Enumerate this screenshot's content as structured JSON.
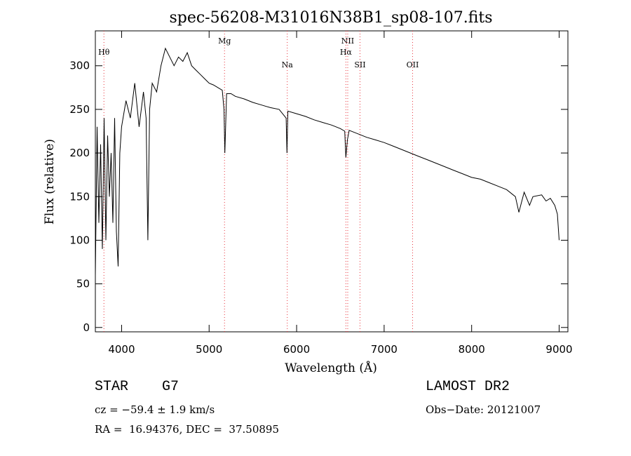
{
  "chart_data": {
    "type": "line",
    "title": "spec-56208-M31016N38B1_sp08-107.fits",
    "xlabel": "Wavelength (Å)",
    "ylabel": "Flux (relative)",
    "xlim": [
      3700,
      9100
    ],
    "ylim": [
      -5,
      340
    ],
    "x_ticks": [
      4000,
      5000,
      6000,
      7000,
      8000,
      9000
    ],
    "y_ticks": [
      0,
      50,
      100,
      150,
      200,
      250,
      300
    ],
    "grid": false,
    "line_color": "#000000",
    "marker_color": "#e8333b",
    "spectral_lines": [
      {
        "label": "Hθ",
        "x": 3798
      },
      {
        "label": "Mg",
        "x": 5176
      },
      {
        "label": "Na",
        "x": 5893
      },
      {
        "label": "NII",
        "x": 6584
      },
      {
        "label": "Hα",
        "x": 6563
      },
      {
        "label": "SII",
        "x": 6724
      },
      {
        "label": "OII",
        "x": 7325
      }
    ],
    "series": [
      {
        "x": [
          3700,
          3720,
          3740,
          3760,
          3780,
          3800,
          3820,
          3840,
          3860,
          3880,
          3900,
          3920,
          3940,
          3960,
          3980,
          4000,
          4050,
          4100,
          4150,
          4200,
          4250,
          4280,
          4300,
          4320,
          4350,
          4400,
          4450,
          4500,
          4550,
          4600,
          4650,
          4700,
          4750,
          4800,
          4850,
          4900,
          4950,
          5000,
          5050,
          5100,
          5150,
          5170,
          5180,
          5200,
          5250,
          5300,
          5400,
          5500,
          5600,
          5700,
          5800,
          5880,
          5890,
          5900,
          6000,
          6100,
          6200,
          6300,
          6400,
          6500,
          6550,
          6563,
          6580,
          6600,
          6700,
          6800,
          6900,
          7000,
          7100,
          7200,
          7300,
          7400,
          7500,
          7600,
          7700,
          7800,
          7900,
          8000,
          8100,
          8200,
          8300,
          8400,
          8500,
          8540,
          8600,
          8662,
          8700,
          8800,
          8850,
          8900,
          8950,
          8980,
          9000
        ],
        "y": [
          60,
          230,
          120,
          210,
          90,
          240,
          100,
          220,
          150,
          200,
          120,
          240,
          110,
          70,
          200,
          230,
          260,
          240,
          280,
          230,
          270,
          240,
          100,
          250,
          280,
          270,
          300,
          320,
          310,
          300,
          310,
          305,
          315,
          300,
          295,
          290,
          285,
          280,
          278,
          275,
          272,
          250,
          200,
          268,
          268,
          265,
          262,
          258,
          255,
          252,
          250,
          240,
          200,
          248,
          245,
          242,
          238,
          235,
          232,
          228,
          225,
          195,
          215,
          226,
          222,
          218,
          215,
          212,
          208,
          204,
          200,
          196,
          192,
          188,
          184,
          180,
          176,
          172,
          170,
          166,
          162,
          158,
          150,
          132,
          155,
          140,
          150,
          152,
          145,
          148,
          140,
          130,
          100
        ]
      }
    ]
  },
  "footer": {
    "object_line": "STAR    G7",
    "survey": "LAMOST DR2",
    "cz": "cz = −59.4 ± 1.9 km/s",
    "obs_date": "Obs−Date: 20121007",
    "coords": "RA =  16.94376, DEC =  37.50895"
  }
}
